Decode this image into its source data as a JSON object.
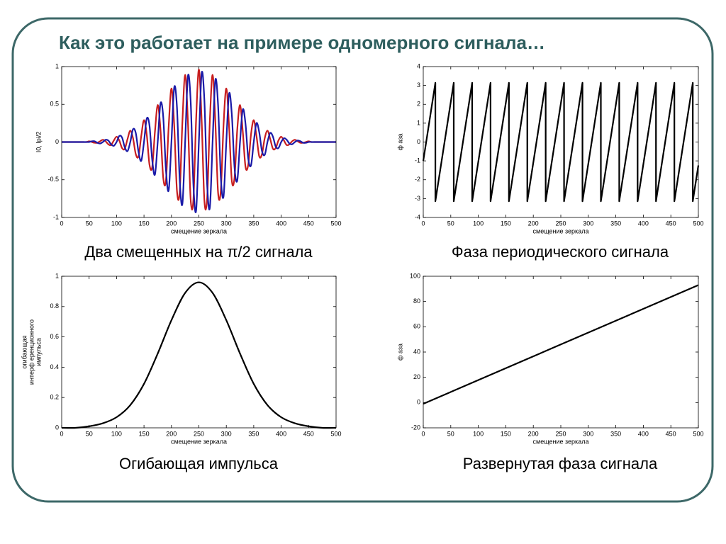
{
  "title": "Как это работает на примере одномерного сигнала…",
  "chart_data": [
    {
      "type": "line",
      "caption": "Два смещенных на π/2 сигнала",
      "xlabel": "смещение зеркала",
      "ylabel": "I0, Ipi/2",
      "xlim": [
        0,
        500
      ],
      "xticks": [
        0,
        50,
        100,
        150,
        200,
        250,
        300,
        350,
        400,
        450,
        500
      ],
      "ylim": [
        -1,
        1
      ],
      "yticks": [
        -1,
        -0.5,
        0,
        0.5,
        1
      ],
      "x": [
        0,
        5,
        10,
        15,
        20,
        25,
        30,
        35,
        40,
        45,
        50,
        55,
        60,
        65,
        70,
        75,
        80,
        85,
        90,
        95,
        100,
        105,
        110,
        115,
        120,
        125,
        130,
        135,
        140,
        145,
        150,
        155,
        160,
        165,
        170,
        175,
        180,
        185,
        190,
        195,
        200,
        205,
        210,
        215,
        220,
        225,
        230,
        235,
        240,
        245,
        250,
        255,
        260,
        265,
        270,
        275,
        280,
        285,
        290,
        295,
        300,
        305,
        310,
        315,
        320,
        325,
        330,
        335,
        340,
        345,
        350,
        355,
        360,
        365,
        370,
        375,
        380,
        385,
        390,
        395,
        400,
        405,
        410,
        415,
        420,
        425,
        430,
        435,
        440,
        445,
        450,
        455,
        460,
        465,
        470,
        475,
        480,
        485,
        490,
        495,
        500
      ],
      "series": [
        {
          "color": "#c81e1e",
          "values": [
            0,
            0,
            0,
            0,
            0,
            0,
            0,
            0,
            0,
            0,
            0.01,
            0,
            -0.01,
            -0.01,
            0.01,
            0.03,
            0.01,
            -0.03,
            -0.04,
            0.02,
            0.07,
            0.02,
            -0.08,
            -0.09,
            0.04,
            0.15,
            0.05,
            -0.16,
            -0.19,
            0.08,
            0.29,
            0.1,
            -0.3,
            -0.33,
            0.14,
            0.49,
            0.17,
            -0.47,
            -0.51,
            0.21,
            0.71,
            0.23,
            -0.64,
            -0.67,
            0.27,
            0.89,
            0.28,
            -0.76,
            -0.77,
            0.3,
            0.96,
            0.3,
            -0.77,
            -0.76,
            0.28,
            0.89,
            0.27,
            -0.67,
            -0.64,
            0.23,
            0.71,
            0.21,
            -0.51,
            -0.47,
            0.17,
            0.49,
            0.14,
            -0.33,
            -0.3,
            0.1,
            0.29,
            0.08,
            -0.19,
            -0.16,
            0.05,
            0.15,
            0.04,
            -0.09,
            -0.08,
            0.02,
            0.07,
            0.02,
            -0.04,
            -0.03,
            0.01,
            0.03,
            0.01,
            -0.01,
            -0.01,
            0,
            0.01,
            0,
            0,
            0,
            0,
            0,
            0,
            0,
            0,
            0,
            0
          ]
        },
        {
          "color": "#1a1aa8",
          "values": [
            0,
            0,
            0,
            0,
            0,
            0,
            0,
            0,
            0,
            0,
            0,
            0.01,
            0.01,
            -0.01,
            -0.02,
            0,
            0.03,
            0.02,
            -0.03,
            -0.05,
            0,
            0.08,
            0.06,
            -0.07,
            -0.12,
            0,
            0.17,
            0.12,
            -0.13,
            -0.25,
            0,
            0.31,
            0.22,
            -0.24,
            -0.43,
            0,
            0.51,
            0.34,
            -0.37,
            -0.64,
            0,
            0.72,
            0.47,
            -0.49,
            -0.82,
            0,
            0.87,
            0.55,
            -0.56,
            -0.91,
            0,
            0.91,
            0.56,
            -0.55,
            -0.87,
            0,
            0.82,
            0.49,
            -0.47,
            -0.72,
            0,
            0.64,
            0.37,
            -0.34,
            -0.51,
            0,
            0.43,
            0.24,
            -0.22,
            -0.31,
            0,
            0.25,
            0.13,
            -0.12,
            -0.17,
            0,
            0.12,
            0.07,
            -0.06,
            -0.08,
            0,
            0.05,
            0.03,
            -0.02,
            -0.03,
            0,
            0.02,
            0.01,
            -0.01,
            -0.01,
            0,
            0,
            0,
            0,
            0,
            0,
            0,
            0,
            0,
            0,
            0
          ]
        }
      ]
    },
    {
      "type": "line",
      "caption": "Фаза периодического сигнала",
      "xlabel": "смещение зеркала",
      "ylabel": "ф аза",
      "xlim": [
        0,
        500
      ],
      "xticks": [
        0,
        50,
        100,
        150,
        200,
        250,
        300,
        350,
        400,
        450,
        500
      ],
      "ylim": [
        -4,
        4
      ],
      "yticks": [
        -4,
        -3,
        -2,
        -1,
        0,
        1,
        2,
        3,
        4
      ],
      "x": [
        0,
        22,
        22,
        55.4,
        55.4,
        88.9,
        88.9,
        122.3,
        122.3,
        155.7,
        155.7,
        189.1,
        189.1,
        222.5,
        222.5,
        255.9,
        255.9,
        289.4,
        289.4,
        322.8,
        322.8,
        356.2,
        356.2,
        389.6,
        389.6,
        423,
        423,
        456.4,
        456.4,
        489.9,
        489.9,
        500
      ],
      "series": [
        {
          "color": "#000000",
          "values": [
            -1,
            3.14,
            -3.14,
            3.14,
            -3.14,
            3.14,
            -3.14,
            3.14,
            -3.14,
            3.14,
            -3.14,
            3.14,
            -3.14,
            3.14,
            -3.14,
            3.14,
            -3.14,
            3.14,
            -3.14,
            3.14,
            -3.14,
            3.14,
            -3.14,
            3.14,
            -3.14,
            3.14,
            -3.14,
            3.14,
            -3.14,
            3.14,
            -3.14,
            -1.24
          ]
        }
      ]
    },
    {
      "type": "line",
      "caption": "Огибающая импульса",
      "xlabel": "смещение зеркала",
      "ylabel": [
        "огибающая",
        "интерф еренционного",
        "импульса"
      ],
      "xlim": [
        0,
        500
      ],
      "xticks": [
        0,
        50,
        100,
        150,
        200,
        250,
        300,
        350,
        400,
        450,
        500
      ],
      "ylim": [
        0,
        1
      ],
      "yticks": [
        0,
        0.2,
        0.4,
        0.6,
        0.8,
        1
      ],
      "x": [
        0,
        25,
        50,
        75,
        100,
        125,
        150,
        175,
        200,
        225,
        250,
        275,
        300,
        325,
        350,
        375,
        400,
        425,
        450,
        475,
        500
      ],
      "series": [
        {
          "color": "#000000",
          "values": [
            0,
            0,
            0.01,
            0.03,
            0.07,
            0.15,
            0.29,
            0.49,
            0.71,
            0.89,
            0.96,
            0.89,
            0.71,
            0.49,
            0.29,
            0.15,
            0.07,
            0.03,
            0.01,
            0,
            0
          ]
        }
      ]
    },
    {
      "type": "line",
      "caption": "Развернутая фаза сигнала",
      "xlabel": "смещение зеркала",
      "ylabel": "ф аза",
      "xlim": [
        0,
        500
      ],
      "xticks": [
        0,
        50,
        100,
        150,
        200,
        250,
        300,
        350,
        400,
        450,
        500
      ],
      "ylim": [
        -20,
        100
      ],
      "yticks": [
        -20,
        0,
        20,
        40,
        60,
        80,
        100
      ],
      "x": [
        0,
        500
      ],
      "series": [
        {
          "color": "#000000",
          "values": [
            -1,
            93
          ]
        }
      ]
    }
  ]
}
